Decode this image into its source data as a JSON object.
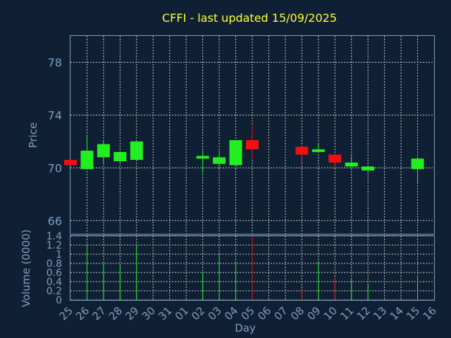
{
  "chart_data": {
    "type": "candlestick",
    "title": "CFFI - last updated 15/09/2025",
    "price_panel": {
      "ylabel": "Price",
      "ylim": [
        65.0,
        80.0
      ],
      "yticks": [
        "66",
        "70",
        "74",
        "78"
      ],
      "grid": true
    },
    "volume_panel": {
      "ylabel": "Volume (0000)",
      "ylim": [
        0,
        1.4
      ],
      "yticks": [
        "0",
        "0.2",
        "0.4",
        "0.6",
        "0.8",
        "1",
        "1.2",
        "1.4"
      ],
      "grid": true
    },
    "xlabel": "Day",
    "day_labels": [
      "25",
      "26",
      "27",
      "28",
      "29",
      "30",
      "31",
      "01",
      "02",
      "03",
      "04",
      "05",
      "06",
      "07",
      "08",
      "09",
      "10",
      "11",
      "12",
      "13",
      "14",
      "15",
      "16"
    ],
    "up_color": "#22ee22",
    "down_color": "#ee1111",
    "candles": [
      {
        "day": "25",
        "open": 70.6,
        "close": 70.2,
        "high": 70.6,
        "low": 70.2,
        "volume": 0.0
      },
      {
        "day": "26",
        "open": 69.9,
        "close": 71.3,
        "high": 72.5,
        "low": 69.9,
        "volume": 1.22
      },
      {
        "day": "27",
        "open": 70.8,
        "close": 71.8,
        "high": 72.0,
        "low": 70.4,
        "volume": 0.8
      },
      {
        "day": "28",
        "open": 70.5,
        "close": 71.2,
        "high": 71.2,
        "low": 70.4,
        "volume": 0.75
      },
      {
        "day": "29",
        "open": 70.6,
        "close": 72.0,
        "high": 72.0,
        "low": 70.6,
        "volume": 1.22
      },
      {
        "day": "02",
        "open": 70.7,
        "close": 70.9,
        "high": 71.3,
        "low": 69.6,
        "volume": 0.6
      },
      {
        "day": "03",
        "open": 70.3,
        "close": 70.8,
        "high": 71.3,
        "low": 69.9,
        "volume": 1.03
      },
      {
        "day": "04",
        "open": 70.2,
        "close": 72.1,
        "high": 72.1,
        "low": 70.1,
        "volume": 0.8
      },
      {
        "day": "05",
        "open": 72.1,
        "close": 71.4,
        "high": 73.2,
        "low": 70.6,
        "volume": 1.4
      },
      {
        "day": "08",
        "open": 71.6,
        "close": 71.0,
        "high": 71.6,
        "low": 70.4,
        "volume": 0.25
      },
      {
        "day": "09",
        "open": 71.2,
        "close": 71.4,
        "high": 71.9,
        "low": 71.2,
        "volume": 0.85
      },
      {
        "day": "10",
        "open": 71.0,
        "close": 70.4,
        "high": 71.0,
        "low": 70.0,
        "volume": 0.5
      },
      {
        "day": "11",
        "open": 70.1,
        "close": 70.4,
        "high": 70.9,
        "low": 70.0,
        "volume": 0.45
      },
      {
        "day": "12",
        "open": 69.8,
        "close": 70.1,
        "high": 70.1,
        "low": 69.6,
        "volume": 0.33
      },
      {
        "day": "15",
        "open": 69.9,
        "close": 70.7,
        "high": 70.7,
        "low": 68.9,
        "volume": 0.5
      }
    ]
  }
}
